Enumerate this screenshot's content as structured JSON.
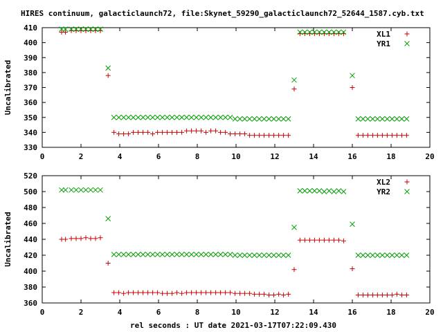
{
  "title": "HIRES continuum, galacticlaunch72, file:Skynet_59290_galacticlaunch72_52644_1587.cyb.txt",
  "xlabel": "rel seconds : UT date 2021-03-17T07:22:09.430",
  "colors": {
    "plus": "#cc0000",
    "cross": "#00a000"
  },
  "chart_data": [
    {
      "type": "scatter",
      "ylabel": "Uncalibrated",
      "xlim": [
        0,
        20
      ],
      "ylim": [
        330,
        410
      ],
      "xticks": [
        0,
        2,
        4,
        6,
        8,
        10,
        12,
        14,
        16,
        18,
        20
      ],
      "yticks": [
        330,
        340,
        350,
        360,
        370,
        380,
        390,
        400,
        410
      ],
      "grid": false,
      "legend_position": "top-right",
      "series": [
        {
          "name": "XL1",
          "marker": "plus",
          "x": [
            1.0,
            1.2,
            1.5,
            1.75,
            2.0,
            2.25,
            2.5,
            2.75,
            3.0,
            3.4,
            3.7,
            3.95,
            4.2,
            4.45,
            4.7,
            4.95,
            5.2,
            5.45,
            5.7,
            5.95,
            6.2,
            6.45,
            6.7,
            6.95,
            7.2,
            7.45,
            7.7,
            7.95,
            8.2,
            8.45,
            8.7,
            8.95,
            9.2,
            9.45,
            9.7,
            9.95,
            10.2,
            10.45,
            10.7,
            10.95,
            11.2,
            11.45,
            11.7,
            11.95,
            12.2,
            12.45,
            12.7,
            13.0,
            13.3,
            13.55,
            13.8,
            14.05,
            14.3,
            14.55,
            14.8,
            15.05,
            15.3,
            15.55,
            16.0,
            16.3,
            16.55,
            16.8,
            17.05,
            17.3,
            17.55,
            17.8,
            18.05,
            18.3,
            18.55,
            18.8
          ],
          "y": [
            407,
            407,
            408,
            408,
            408,
            408,
            408,
            408,
            408,
            378,
            340,
            339,
            339,
            339,
            340,
            340,
            340,
            340,
            339,
            340,
            340,
            340,
            340,
            340,
            340,
            341,
            341,
            341,
            341,
            340,
            341,
            341,
            340,
            340,
            339,
            339,
            339,
            339,
            338,
            338,
            338,
            338,
            338,
            338,
            338,
            338,
            338,
            369,
            406,
            406,
            406,
            406,
            406,
            406,
            406,
            406,
            406,
            406,
            370,
            338,
            338,
            338,
            338,
            338,
            338,
            338,
            338,
            338,
            338,
            338
          ]
        },
        {
          "name": "YR1",
          "marker": "cross",
          "x": [
            1.0,
            1.2,
            1.5,
            1.75,
            2.0,
            2.25,
            2.5,
            2.75,
            3.0,
            3.4,
            3.7,
            3.95,
            4.2,
            4.45,
            4.7,
            4.95,
            5.2,
            5.45,
            5.7,
            5.95,
            6.2,
            6.45,
            6.7,
            6.95,
            7.2,
            7.45,
            7.7,
            7.95,
            8.2,
            8.45,
            8.7,
            8.95,
            9.2,
            9.45,
            9.7,
            9.95,
            10.2,
            10.45,
            10.7,
            10.95,
            11.2,
            11.45,
            11.7,
            11.95,
            12.2,
            12.45,
            12.7,
            13.0,
            13.3,
            13.55,
            13.8,
            14.05,
            14.3,
            14.55,
            14.8,
            15.05,
            15.3,
            15.55,
            16.0,
            16.3,
            16.55,
            16.8,
            17.05,
            17.3,
            17.55,
            17.8,
            18.05,
            18.3,
            18.55,
            18.8
          ],
          "y": [
            409,
            409,
            409,
            409,
            409,
            409,
            409,
            409,
            409,
            383,
            350,
            350,
            350,
            350,
            350,
            350,
            350,
            350,
            350,
            350,
            350,
            350,
            350,
            350,
            350,
            350,
            350,
            350,
            350,
            350,
            350,
            350,
            350,
            350,
            350,
            349,
            349,
            349,
            349,
            349,
            349,
            349,
            349,
            349,
            349,
            349,
            349,
            375,
            407,
            407,
            407,
            407,
            407,
            407,
            407,
            407,
            407,
            407,
            378,
            349,
            349,
            349,
            349,
            349,
            349,
            349,
            349,
            349,
            349,
            349
          ]
        }
      ]
    },
    {
      "type": "scatter",
      "ylabel": "Uncalibrated",
      "xlim": [
        0,
        20
      ],
      "ylim": [
        360,
        520
      ],
      "xticks": [
        0,
        2,
        4,
        6,
        8,
        10,
        12,
        14,
        16,
        18,
        20
      ],
      "yticks": [
        360,
        380,
        400,
        420,
        440,
        460,
        480,
        500,
        520
      ],
      "grid": false,
      "legend_position": "top-right",
      "series": [
        {
          "name": "XL2",
          "marker": "plus",
          "x": [
            1.0,
            1.2,
            1.5,
            1.75,
            2.0,
            2.25,
            2.5,
            2.75,
            3.0,
            3.4,
            3.7,
            3.95,
            4.2,
            4.45,
            4.7,
            4.95,
            5.2,
            5.45,
            5.7,
            5.95,
            6.2,
            6.45,
            6.7,
            6.95,
            7.2,
            7.45,
            7.7,
            7.95,
            8.2,
            8.45,
            8.7,
            8.95,
            9.2,
            9.45,
            9.7,
            9.95,
            10.2,
            10.45,
            10.7,
            10.95,
            11.2,
            11.45,
            11.7,
            11.95,
            12.2,
            12.45,
            12.7,
            13.0,
            13.3,
            13.55,
            13.8,
            14.05,
            14.3,
            14.55,
            14.8,
            15.05,
            15.3,
            15.55,
            16.0,
            16.3,
            16.55,
            16.8,
            17.05,
            17.3,
            17.55,
            17.8,
            18.05,
            18.3,
            18.55,
            18.8
          ],
          "y": [
            440,
            440,
            441,
            441,
            441,
            442,
            441,
            441,
            442,
            410,
            373,
            373,
            372,
            373,
            373,
            373,
            373,
            373,
            373,
            373,
            372,
            372,
            372,
            373,
            372,
            373,
            373,
            373,
            373,
            373,
            373,
            373,
            373,
            373,
            373,
            372,
            372,
            372,
            372,
            371,
            371,
            371,
            370,
            370,
            371,
            370,
            371,
            402,
            439,
            439,
            439,
            439,
            439,
            439,
            439,
            439,
            439,
            438,
            403,
            370,
            370,
            370,
            370,
            370,
            370,
            370,
            370,
            371,
            370,
            370
          ]
        },
        {
          "name": "YR2",
          "marker": "cross",
          "x": [
            1.0,
            1.2,
            1.5,
            1.75,
            2.0,
            2.25,
            2.5,
            2.75,
            3.0,
            3.4,
            3.7,
            3.95,
            4.2,
            4.45,
            4.7,
            4.95,
            5.2,
            5.45,
            5.7,
            5.95,
            6.2,
            6.45,
            6.7,
            6.95,
            7.2,
            7.45,
            7.7,
            7.95,
            8.2,
            8.45,
            8.7,
            8.95,
            9.2,
            9.45,
            9.7,
            9.95,
            10.2,
            10.45,
            10.7,
            10.95,
            11.2,
            11.45,
            11.7,
            11.95,
            12.2,
            12.45,
            12.7,
            13.0,
            13.3,
            13.55,
            13.8,
            14.05,
            14.3,
            14.55,
            14.8,
            15.05,
            15.3,
            15.55,
            16.0,
            16.3,
            16.55,
            16.8,
            17.05,
            17.3,
            17.55,
            17.8,
            18.05,
            18.3,
            18.55,
            18.8
          ],
          "y": [
            502,
            502,
            502,
            502,
            502,
            502,
            502,
            502,
            502,
            466,
            421,
            421,
            421,
            421,
            421,
            421,
            421,
            421,
            421,
            421,
            421,
            421,
            421,
            421,
            421,
            421,
            421,
            421,
            421,
            421,
            421,
            421,
            421,
            421,
            421,
            420,
            420,
            420,
            420,
            420,
            420,
            420,
            420,
            420,
            420,
            420,
            420,
            455,
            501,
            501,
            501,
            501,
            501,
            500,
            501,
            500,
            501,
            500,
            459,
            420,
            420,
            420,
            420,
            420,
            420,
            420,
            420,
            420,
            420,
            420
          ]
        }
      ]
    }
  ]
}
